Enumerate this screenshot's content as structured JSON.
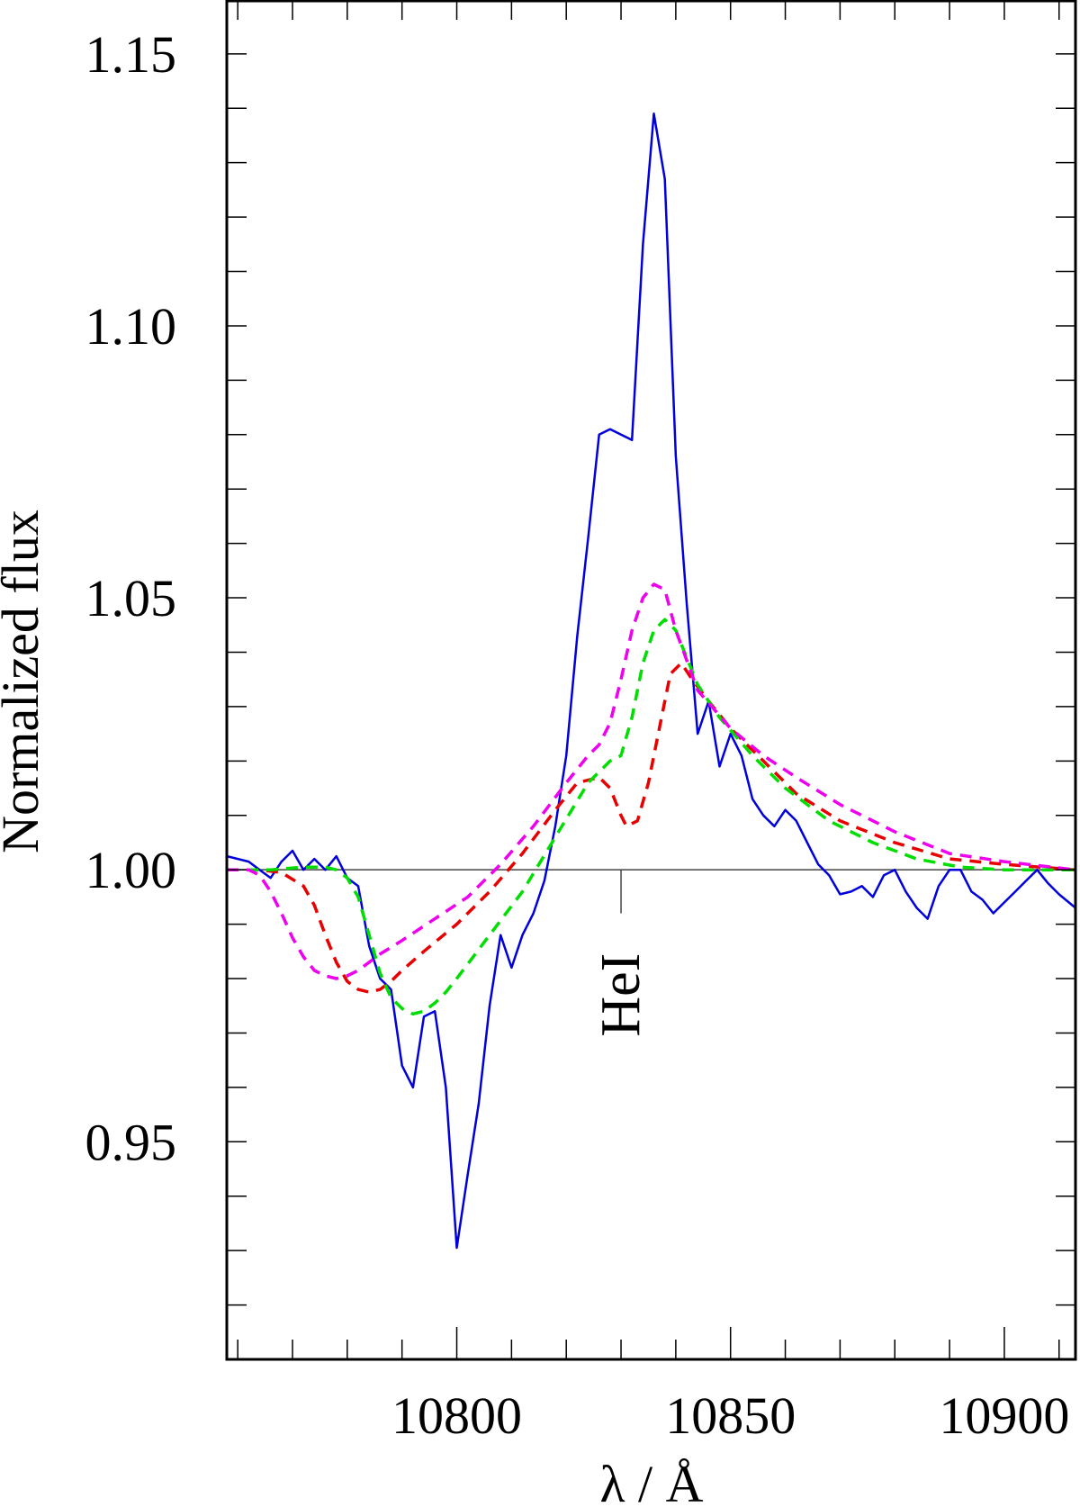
{
  "chart_data": {
    "type": "line",
    "title": "",
    "xlabel": "λ / Å",
    "ylabel": "Normalized flux",
    "xlim": [
      10758,
      10913
    ],
    "ylim": [
      0.91,
      1.1599
    ],
    "x_ticks": [
      10800,
      10850,
      10900
    ],
    "x_tick_labels": [
      "10800",
      "10850",
      "10900"
    ],
    "x_minor_step": 10,
    "y_ticks": [
      0.95,
      1.0,
      1.05,
      1.1,
      1.15
    ],
    "y_tick_labels": [
      "0.95",
      "1.00",
      "1.05",
      "1.10",
      "1.15"
    ],
    "y_minor_step": 0.01,
    "reference_line": 1.0,
    "annotations": [
      {
        "text": "HeI",
        "x": 10830,
        "y": 0.977,
        "rotation": -90,
        "marker_from": 0.992,
        "marker_to": 1.0
      }
    ],
    "series": [
      {
        "style": "solid",
        "color": "#0000dd",
        "width": 2.5,
        "x": [
          10758,
          10762,
          10764,
          10766,
          10768,
          10770,
          10772,
          10774,
          10776,
          10778,
          10780,
          10782,
          10784,
          10786,
          10788,
          10790,
          10792,
          10794,
          10796,
          10798,
          10800,
          10802,
          10804,
          10806,
          10808,
          10810,
          10812,
          10814,
          10816,
          10818,
          10820,
          10822,
          10824,
          10826,
          10828,
          10830,
          10832,
          10834,
          10836,
          10838,
          10840,
          10842,
          10844,
          10846,
          10848,
          10850,
          10852,
          10854,
          10856,
          10858,
          10860,
          10862,
          10864,
          10866,
          10868,
          10870,
          10872,
          10874,
          10876,
          10878,
          10880,
          10882,
          10884,
          10886,
          10888,
          10890,
          10892,
          10894,
          10896,
          10898,
          10900,
          10902,
          10904,
          10906,
          10908,
          10910,
          10913
        ],
        "y": [
          1.0025,
          1.0015,
          1.0,
          0.9985,
          1.0015,
          1.0035,
          1.0,
          1.002,
          1.0,
          1.0025,
          0.9985,
          0.997,
          0.986,
          0.98,
          0.978,
          0.964,
          0.96,
          0.973,
          0.974,
          0.96,
          0.9305,
          0.944,
          0.957,
          0.975,
          0.988,
          0.982,
          0.988,
          0.992,
          0.998,
          1.008,
          1.021,
          1.043,
          1.061,
          1.08,
          1.081,
          1.08,
          1.079,
          1.115,
          1.139,
          1.127,
          1.076,
          1.049,
          1.025,
          1.031,
          1.019,
          1.025,
          1.021,
          1.013,
          1.01,
          1.008,
          1.011,
          1.009,
          1.005,
          1.001,
          0.999,
          0.9955,
          0.996,
          0.997,
          0.995,
          0.999,
          1.0,
          0.996,
          0.993,
          0.991,
          0.997,
          1.0,
          1.0,
          0.996,
          0.9945,
          0.992,
          0.994,
          0.996,
          0.998,
          1.0,
          0.9975,
          0.9955,
          0.993
        ]
      },
      {
        "style": "dashed",
        "color": "#e80000",
        "width": 3.5,
        "x": [
          10758,
          10764,
          10768,
          10772,
          10774,
          10776,
          10778,
          10780,
          10782,
          10784,
          10786,
          10788,
          10790,
          10794,
          10800,
          10806,
          10812,
          10818,
          10822,
          10826,
          10828,
          10830,
          10831,
          10833,
          10835,
          10837,
          10839,
          10841,
          10843,
          10846,
          10850,
          10856,
          10862,
          10870,
          10880,
          10890,
          10900,
          10913
        ],
        "y": [
          1.0,
          1.0,
          0.9995,
          0.997,
          0.9935,
          0.988,
          0.983,
          0.9795,
          0.978,
          0.9775,
          0.978,
          0.9795,
          0.9815,
          0.985,
          0.99,
          0.996,
          1.003,
          1.011,
          1.016,
          1.017,
          1.015,
          1.01,
          1.008,
          1.009,
          1.016,
          1.026,
          1.036,
          1.038,
          1.035,
          1.031,
          1.026,
          1.02,
          1.014,
          1.009,
          1.005,
          1.002,
          1.001,
          1.0
        ]
      },
      {
        "style": "dashed",
        "color": "#00dd00",
        "width": 3.5,
        "x": [
          10758,
          10766,
          10772,
          10776,
          10778,
          10780,
          10782,
          10784,
          10786,
          10788,
          10790,
          10792,
          10794,
          10796,
          10798,
          10800,
          10806,
          10812,
          10818,
          10824,
          10828,
          10830,
          10832,
          10834,
          10836,
          10838,
          10840,
          10842,
          10844,
          10848,
          10854,
          10860,
          10868,
          10876,
          10884,
          10892,
          10900,
          10913
        ],
        "y": [
          1.0,
          1.0,
          1.0005,
          1.0005,
          1.0,
          0.9985,
          0.995,
          0.988,
          0.981,
          0.9765,
          0.9745,
          0.9735,
          0.974,
          0.9755,
          0.9775,
          0.98,
          0.988,
          0.996,
          1.006,
          1.016,
          1.02,
          1.021,
          1.028,
          1.038,
          1.044,
          1.046,
          1.044,
          1.039,
          1.034,
          1.028,
          1.021,
          1.015,
          1.009,
          1.005,
          1.002,
          1.0005,
          1.0,
          1.0
        ]
      },
      {
        "style": "dashed",
        "color": "#ee00ee",
        "width": 3.5,
        "x": [
          10758,
          10762,
          10764,
          10766,
          10768,
          10770,
          10772,
          10774,
          10776,
          10778,
          10780,
          10782,
          10784,
          10786,
          10790,
          10796,
          10802,
          10808,
          10814,
          10820,
          10824,
          10826,
          10828,
          10830,
          10832,
          10834,
          10836,
          10838,
          10840,
          10844,
          10850,
          10856,
          10862,
          10870,
          10880,
          10890,
          10900,
          10913
        ],
        "y": [
          1.0,
          1.0,
          0.999,
          0.996,
          0.992,
          0.9875,
          0.984,
          0.9815,
          0.9805,
          0.98,
          0.9805,
          0.9815,
          0.983,
          0.9845,
          0.987,
          0.991,
          0.995,
          1.001,
          1.008,
          1.016,
          1.021,
          1.023,
          1.027,
          1.035,
          1.044,
          1.05,
          1.0525,
          1.0515,
          1.044,
          1.033,
          1.026,
          1.021,
          1.017,
          1.012,
          1.007,
          1.003,
          1.0015,
          1.0
        ]
      }
    ]
  }
}
